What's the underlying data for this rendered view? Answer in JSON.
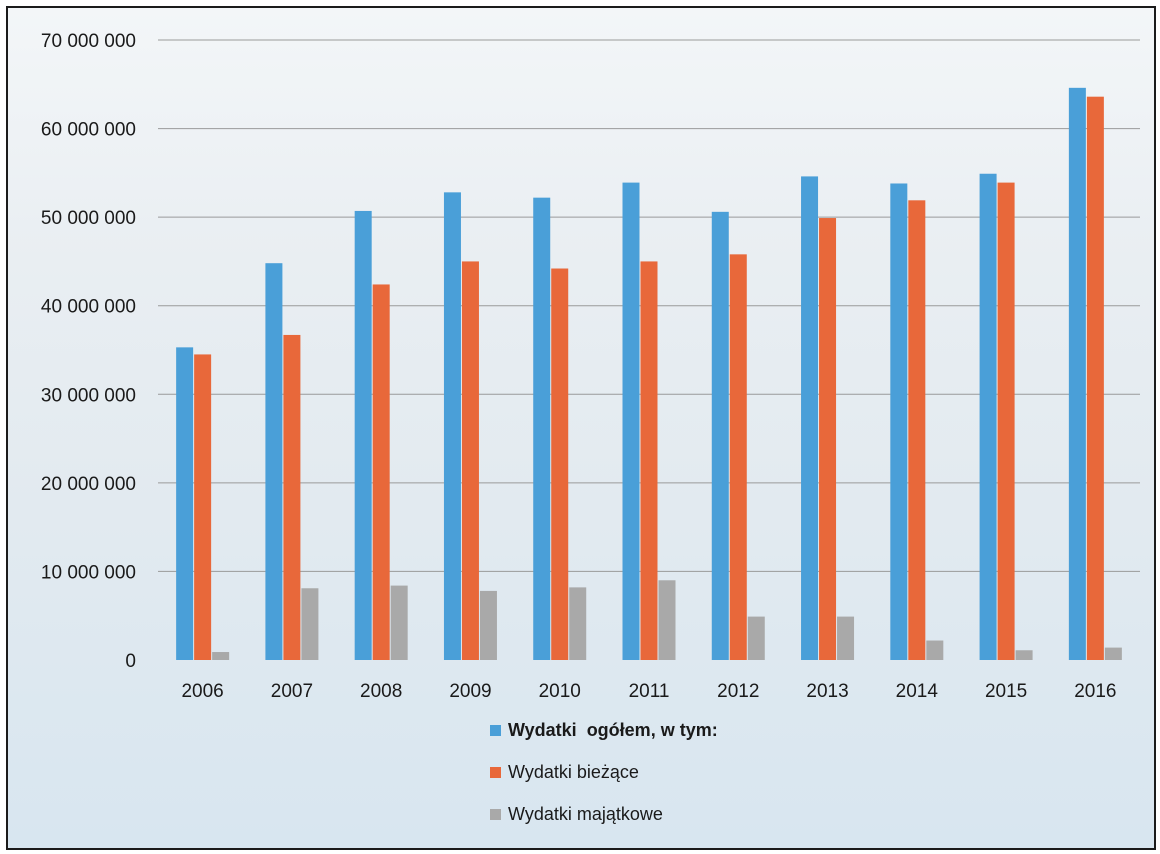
{
  "chart_data": {
    "type": "bar",
    "title": "",
    "xlabel": "",
    "ylabel": "",
    "ylim": [
      0,
      70000000
    ],
    "yticks": [
      0,
      10000000,
      20000000,
      30000000,
      40000000,
      50000000,
      60000000,
      70000000
    ],
    "ytick_labels": [
      "0",
      "10 000 000",
      "20 000 000",
      "30 000 000",
      "40 000 000",
      "50 000 000",
      "60 000 000",
      "70 000 000"
    ],
    "grid": true,
    "legend_position": "bottom",
    "categories": [
      "2006",
      "2007",
      "2008",
      "2009",
      "2010",
      "2011",
      "2012",
      "2013",
      "2014",
      "2015",
      "2016"
    ],
    "series": [
      {
        "name": "Wydatki  ogółem, w tym:",
        "color": "#4a9fd8",
        "values": [
          35300000,
          44800000,
          50700000,
          52800000,
          52200000,
          53900000,
          50600000,
          54600000,
          53800000,
          54900000,
          64600000
        ]
      },
      {
        "name": "Wydatki bieżące",
        "color": "#e8683a",
        "values": [
          34500000,
          36700000,
          42400000,
          45000000,
          44200000,
          45000000,
          45800000,
          49900000,
          51900000,
          53900000,
          63600000
        ]
      },
      {
        "name": "Wydatki majątkowe",
        "color": "#a9a9a9",
        "values": [
          900000,
          8100000,
          8400000,
          7800000,
          8200000,
          9000000,
          4900000,
          4900000,
          2200000,
          1100000,
          1400000
        ]
      }
    ]
  }
}
